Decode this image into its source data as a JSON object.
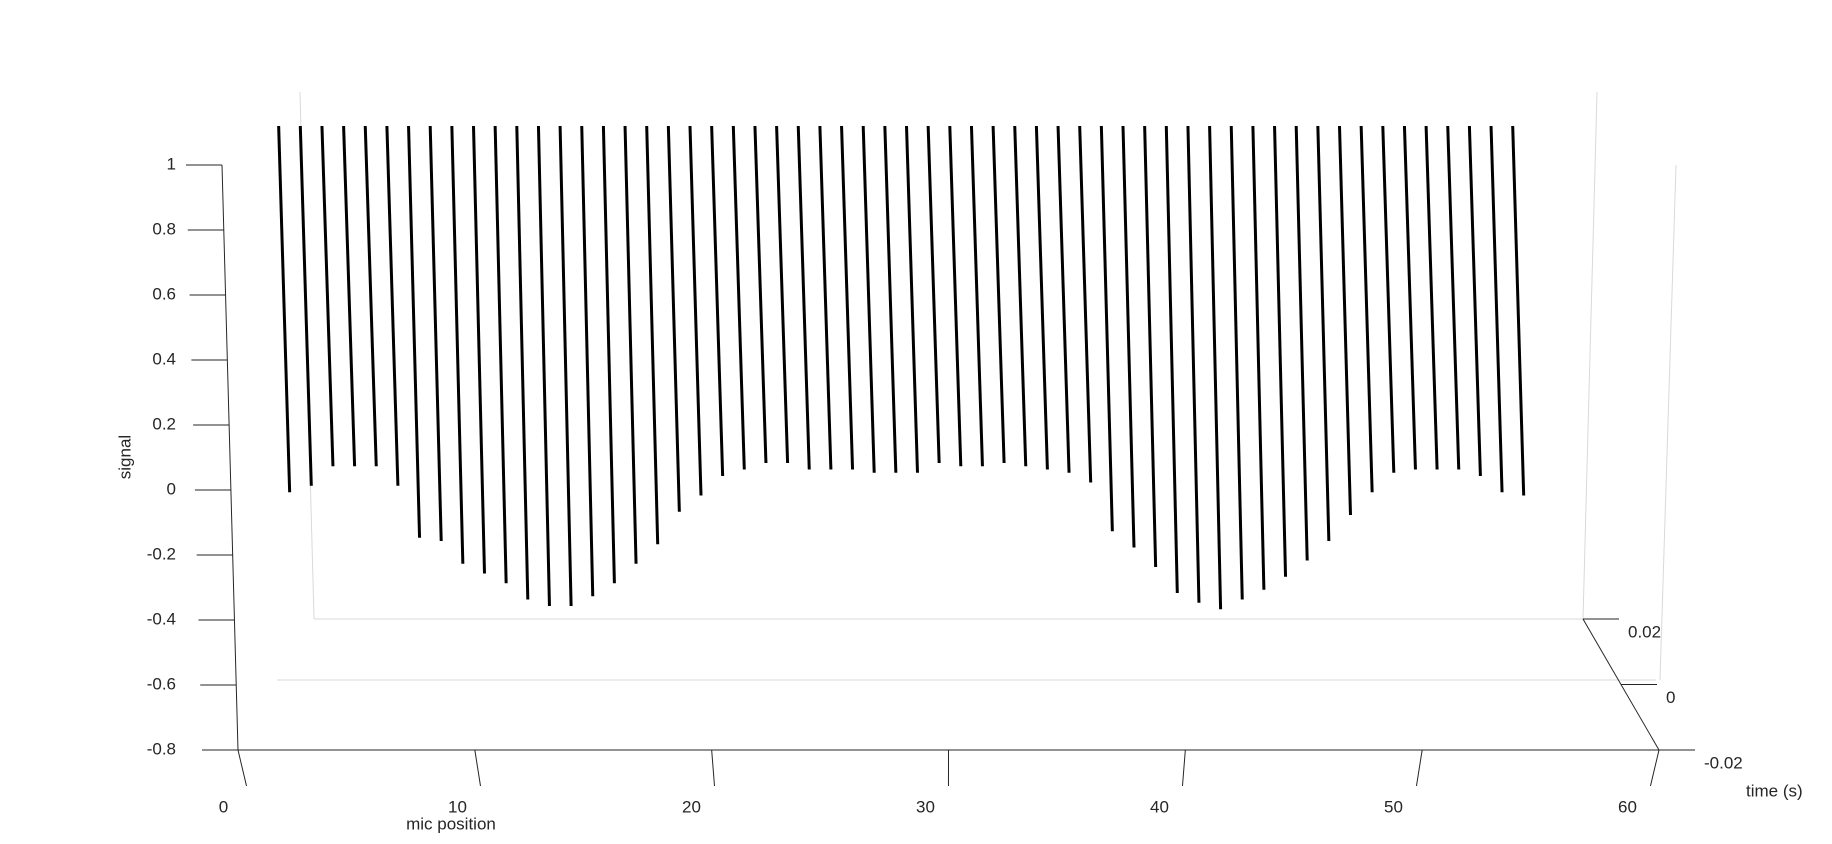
{
  "chart_data": {
    "type": "line3d",
    "xlabel": "mic position",
    "ylabel": "time (s)",
    "zlabel": "signal",
    "xlim": [
      0,
      60
    ],
    "xticks": [
      0,
      10,
      20,
      30,
      40,
      50,
      60
    ],
    "ylim": [
      -0.02,
      0.02
    ],
    "yticks": [
      -0.02,
      0,
      0.02
    ],
    "zlim": [
      -0.8,
      1
    ],
    "zticks": [
      -0.8,
      -0.6,
      -0.4,
      -0.2,
      0,
      0.2,
      0.4,
      0.6,
      0.8,
      1
    ],
    "color": "#000000",
    "x": [
      1,
      2,
      3,
      4,
      5,
      6,
      7,
      8,
      9,
      10,
      11,
      12,
      13,
      14,
      15,
      16,
      17,
      18,
      19,
      20,
      21,
      22,
      23,
      24,
      25,
      26,
      27,
      28,
      29,
      30,
      31,
      32,
      33,
      34,
      35,
      36,
      37,
      38,
      39,
      40,
      41,
      42,
      43,
      44,
      45,
      46,
      47,
      48,
      49,
      50,
      51,
      52,
      53,
      54,
      55,
      56,
      57,
      58
    ],
    "values": [
      -0.13,
      -0.11,
      -0.05,
      -0.05,
      -0.05,
      -0.11,
      -0.27,
      -0.28,
      -0.35,
      -0.38,
      -0.41,
      -0.46,
      -0.48,
      -0.48,
      -0.45,
      -0.41,
      -0.35,
      -0.29,
      -0.19,
      -0.14,
      -0.08,
      -0.06,
      -0.04,
      -0.04,
      -0.06,
      -0.06,
      -0.06,
      -0.07,
      -0.07,
      -0.07,
      -0.04,
      -0.05,
      -0.05,
      -0.04,
      -0.05,
      -0.06,
      -0.07,
      -0.1,
      -0.25,
      -0.3,
      -0.36,
      -0.44,
      -0.47,
      -0.49,
      -0.46,
      -0.43,
      -0.39,
      -0.34,
      -0.28,
      -0.2,
      -0.13,
      -0.07,
      -0.06,
      -0.06,
      -0.06,
      -0.08,
      -0.13,
      -0.14
    ]
  }
}
